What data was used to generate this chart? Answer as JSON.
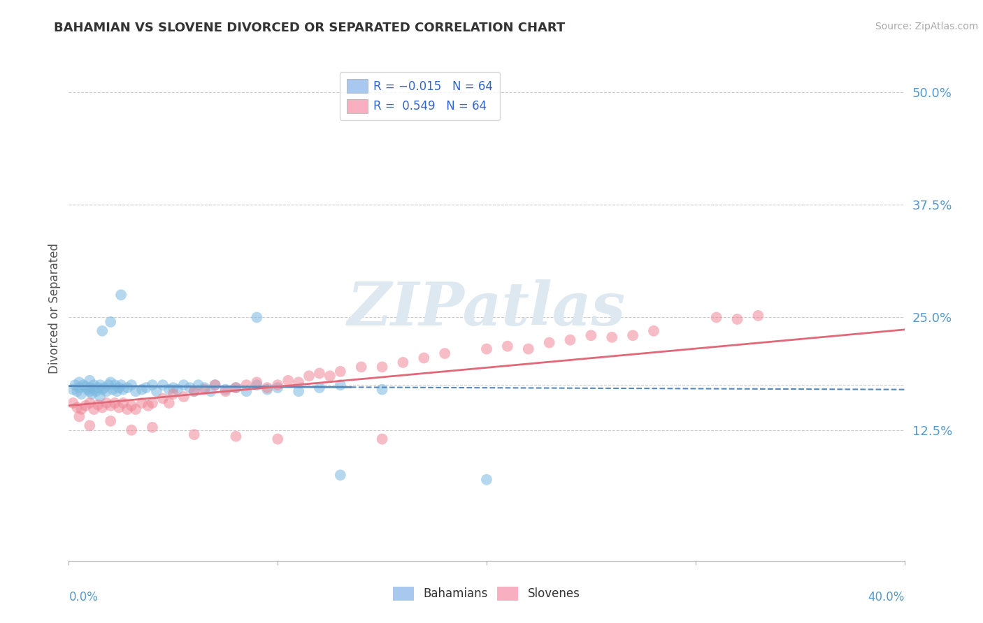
{
  "title": "BAHAMIAN VS SLOVENE DIVORCED OR SEPARATED CORRELATION CHART",
  "source": "Source: ZipAtlas.com",
  "ylabel": "Divorced or Separated",
  "xlim": [
    0.0,
    0.4
  ],
  "ylim": [
    -0.02,
    0.54
  ],
  "ytick_positions": [
    0.125,
    0.175,
    0.25,
    0.375,
    0.5
  ],
  "ytick_labels": [
    "12.5%",
    "",
    "25.0%",
    "37.5%",
    "50.0%"
  ],
  "bahamian_color": "#7ab8e0",
  "slovene_color": "#f08898",
  "trend_blue_color": "#5588bb",
  "trend_pink_color": "#e06878",
  "watermark_color": "#dde8f0",
  "R_blue": -0.015,
  "R_pink": 0.549,
  "N": 64,
  "blue_scatter_x": [
    0.002,
    0.003,
    0.004,
    0.005,
    0.005,
    0.006,
    0.007,
    0.008,
    0.009,
    0.01,
    0.01,
    0.01,
    0.011,
    0.012,
    0.012,
    0.013,
    0.014,
    0.015,
    0.015,
    0.016,
    0.017,
    0.018,
    0.019,
    0.02,
    0.021,
    0.022,
    0.023,
    0.024,
    0.025,
    0.026,
    0.028,
    0.03,
    0.032,
    0.035,
    0.037,
    0.04,
    0.042,
    0.045,
    0.048,
    0.05,
    0.052,
    0.055,
    0.058,
    0.06,
    0.062,
    0.065,
    0.068,
    0.07,
    0.075,
    0.08,
    0.085,
    0.09,
    0.095,
    0.1,
    0.11,
    0.12,
    0.13,
    0.15,
    0.016,
    0.02,
    0.025,
    0.09,
    0.13,
    0.2
  ],
  "blue_scatter_y": [
    0.17,
    0.175,
    0.168,
    0.172,
    0.178,
    0.165,
    0.175,
    0.173,
    0.17,
    0.168,
    0.172,
    0.18,
    0.165,
    0.17,
    0.175,
    0.168,
    0.172,
    0.175,
    0.162,
    0.17,
    0.172,
    0.168,
    0.175,
    0.178,
    0.17,
    0.175,
    0.168,
    0.172,
    0.175,
    0.17,
    0.172,
    0.175,
    0.168,
    0.17,
    0.172,
    0.175,
    0.168,
    0.175,
    0.17,
    0.172,
    0.17,
    0.175,
    0.172,
    0.168,
    0.175,
    0.172,
    0.168,
    0.175,
    0.17,
    0.172,
    0.168,
    0.175,
    0.17,
    0.172,
    0.168,
    0.172,
    0.175,
    0.17,
    0.235,
    0.245,
    0.275,
    0.25,
    0.075,
    0.07
  ],
  "pink_scatter_x": [
    0.002,
    0.004,
    0.006,
    0.008,
    0.01,
    0.012,
    0.014,
    0.016,
    0.018,
    0.02,
    0.022,
    0.024,
    0.026,
    0.028,
    0.03,
    0.032,
    0.035,
    0.038,
    0.04,
    0.045,
    0.048,
    0.05,
    0.055,
    0.06,
    0.065,
    0.07,
    0.075,
    0.08,
    0.085,
    0.09,
    0.095,
    0.1,
    0.105,
    0.11,
    0.115,
    0.12,
    0.125,
    0.13,
    0.14,
    0.15,
    0.16,
    0.17,
    0.18,
    0.2,
    0.21,
    0.22,
    0.23,
    0.24,
    0.25,
    0.26,
    0.27,
    0.28,
    0.005,
    0.01,
    0.02,
    0.03,
    0.04,
    0.06,
    0.08,
    0.31,
    0.32,
    0.33,
    0.1,
    0.15
  ],
  "pink_scatter_y": [
    0.155,
    0.15,
    0.148,
    0.152,
    0.155,
    0.148,
    0.153,
    0.15,
    0.155,
    0.152,
    0.155,
    0.15,
    0.155,
    0.148,
    0.152,
    0.148,
    0.155,
    0.152,
    0.155,
    0.16,
    0.155,
    0.165,
    0.162,
    0.168,
    0.17,
    0.175,
    0.168,
    0.172,
    0.175,
    0.178,
    0.172,
    0.175,
    0.18,
    0.178,
    0.185,
    0.188,
    0.185,
    0.19,
    0.195,
    0.195,
    0.2,
    0.205,
    0.21,
    0.215,
    0.218,
    0.215,
    0.222,
    0.225,
    0.23,
    0.228,
    0.23,
    0.235,
    0.14,
    0.13,
    0.135,
    0.125,
    0.128,
    0.12,
    0.118,
    0.25,
    0.248,
    0.252,
    0.115,
    0.115
  ]
}
